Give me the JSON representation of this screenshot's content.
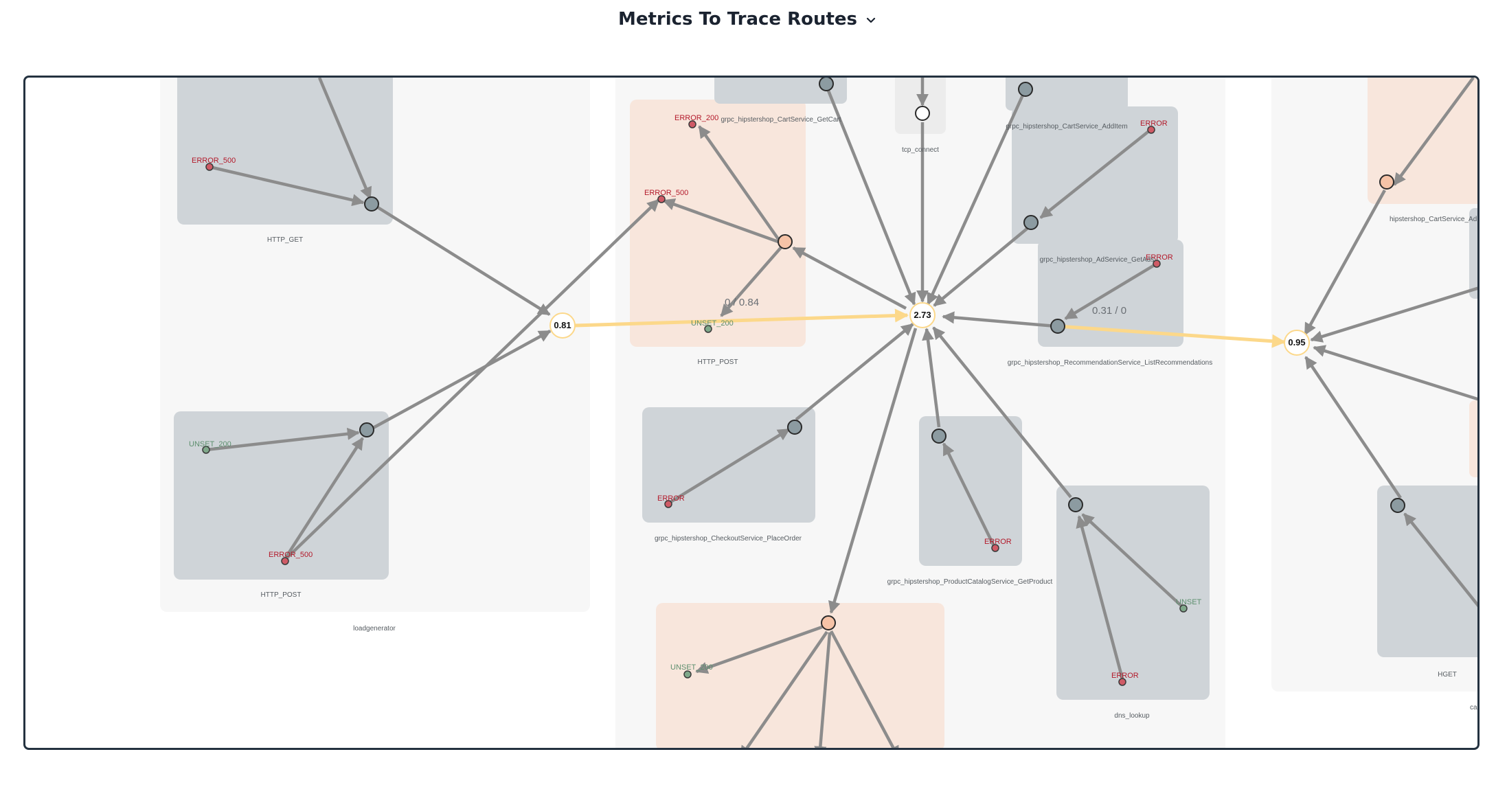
{
  "header": {
    "title": "Metrics To Trace Routes",
    "dropdown_icon": "chevron-down-icon"
  },
  "colors": {
    "frame_border": "#243240",
    "service_bg": "#f7f7f7",
    "op_gray": "#cfd4d8",
    "op_peach": "#f8e6dc",
    "edge": "#8c8c8c",
    "highlight_edge": "#fcd88a",
    "error_text": "#b3192a",
    "ok_text": "#5d8f6e"
  },
  "diagram": {
    "services": {
      "loadgenerator": "loadgenerator",
      "dns_lookup": "dns_lookup",
      "hget": "HGET",
      "right_partial": "ca"
    },
    "operations": {
      "http_get": "HTTP_GET",
      "http_post_left": "HTTP_POST",
      "http_post_mid": "HTTP_POST",
      "get_cart": "grpc_hipstershop_CartService_GetCart",
      "tcp_connect": "tcp_connect",
      "add_item": "grpc_hipstershop_CartService_AddItem",
      "get_ads": "grpc_hipstershop_AdService_GetAds",
      "list_recommendations": "grpc_hipstershop_RecommendationService_ListRecommendations",
      "place_order": "grpc_hipstershop_CheckoutService_PlaceOrder",
      "get_product": "grpc_hipstershop_ProductCatalogService_GetProduct",
      "cart_add_partial": "hipstershop_CartService_Ad"
    },
    "status_labels": {
      "error_500_a": "ERROR_500",
      "unset_200_a": "UNSET_200",
      "error_500_b": "ERROR_500",
      "error_200": "ERROR_200",
      "error_500_c": "ERROR_500",
      "unset_200_b": "UNSET_200",
      "error_additem": "ERROR",
      "error_getads": "ERROR",
      "error_placeorder": "ERROR",
      "error_getproduct": "ERROR",
      "unset_dns": "UNSET",
      "error_dns": "ERROR",
      "unset_200_c": "UNSET_200"
    },
    "hubs": {
      "left": "0.81",
      "center": "2.73",
      "right": "0.95"
    },
    "edge_values": {
      "http_post_edge": "0 / 0.84",
      "get_ads_edge": "0.31 / 0"
    }
  }
}
